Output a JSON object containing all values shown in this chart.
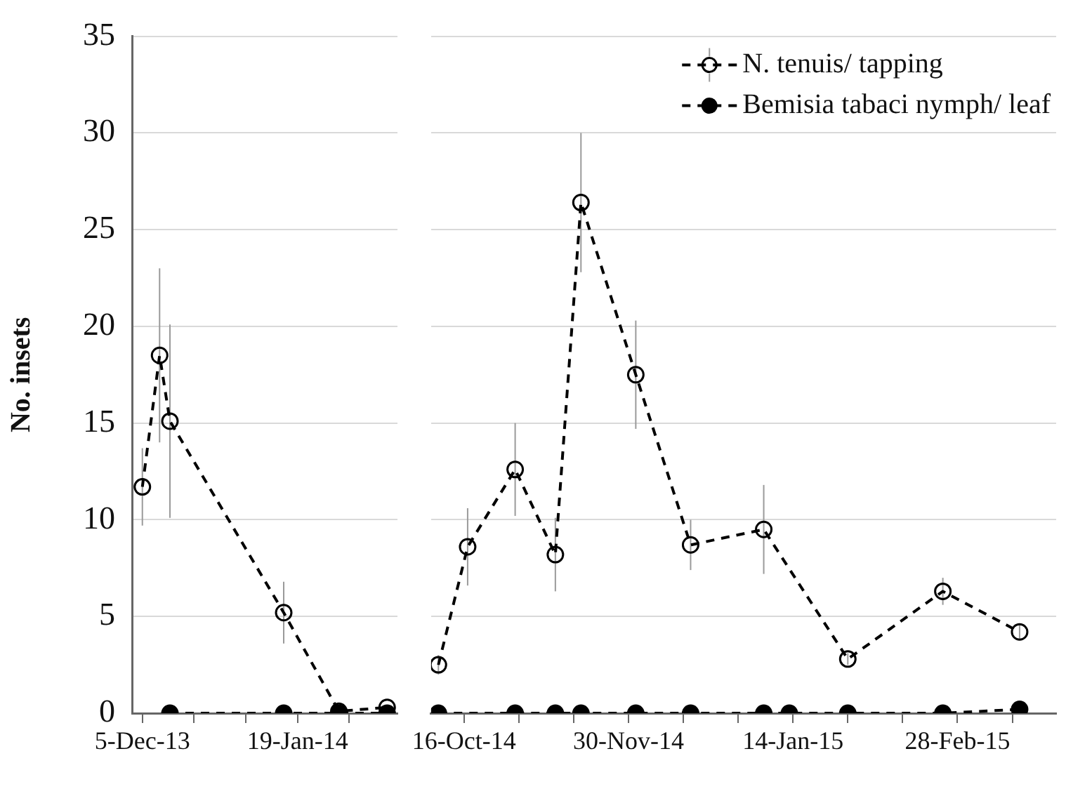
{
  "chart_data": [
    {
      "type": "line",
      "ylabel": "No. insets",
      "ylim": [
        0,
        35
      ],
      "yticks": [
        0,
        5,
        10,
        15,
        20,
        25,
        30,
        35
      ],
      "xlim": [
        "2013-12-02",
        "2014-02-17"
      ],
      "xticks": [
        {
          "value": "2013-12-05",
          "label": "5-Dec-13"
        },
        {
          "value": "2013-12-20",
          "label": null
        },
        {
          "value": "2014-01-04",
          "label": null
        },
        {
          "value": "2014-01-19",
          "label": "19-Jan-14"
        },
        {
          "value": "2014-02-03",
          "label": null
        }
      ],
      "grid": "y",
      "marker": "circle",
      "line_style": "dashed",
      "legend": false,
      "series": [
        {
          "color": "#000000",
          "x": [
            "2013-12-05",
            "2013-12-10",
            "2013-12-13",
            "2014-01-15",
            "2014-01-31",
            "2014-02-14"
          ],
          "values": [
            11.7,
            18.5,
            15.1,
            5.2,
            0.1,
            0.3
          ],
          "errors": [
            2,
            4.5,
            5,
            1.6,
            null,
            null
          ]
        },
        {
          "color": "#000000",
          "x": [
            "2013-12-13",
            "2014-01-15",
            "2014-01-31",
            "2014-02-14"
          ],
          "values": [
            0,
            0,
            0,
            0
          ]
        }
      ]
    },
    {
      "type": "line",
      "ylim": [
        0,
        35
      ],
      "yticks": [
        0,
        5,
        10,
        15,
        20,
        25,
        30,
        35
      ],
      "tick_labels": "x",
      "xlim": [
        "2014-10-07",
        "2015-03-27"
      ],
      "xticks": [
        {
          "value": "2014-10-16",
          "label": "16-Oct-14"
        },
        {
          "value": "2014-10-31",
          "label": null
        },
        {
          "value": "2014-11-15",
          "label": null
        },
        {
          "value": "2014-11-30",
          "label": "30-Nov-14"
        },
        {
          "value": "2014-12-15",
          "label": null
        },
        {
          "value": "2014-12-30",
          "label": null
        },
        {
          "value": "2015-01-14",
          "label": "14-Jan-15"
        },
        {
          "value": "2015-01-29",
          "label": null
        },
        {
          "value": "2015-02-13",
          "label": null
        },
        {
          "value": "2015-02-28",
          "label": "28-Feb-15"
        },
        {
          "value": "2015-03-15",
          "label": null
        }
      ],
      "grid": "y",
      "marker": "circle",
      "line_style": "dashed",
      "legend": "top right",
      "series": [
        {
          "name": "N. tenuis/ tapping",
          "color": "#000000",
          "x": [
            "2014-10-09",
            "2014-10-17",
            "2014-10-30",
            "2014-11-10",
            "2014-11-17",
            "2014-12-02",
            "2014-12-17",
            "2015-01-06",
            "2015-01-29",
            "2015-02-24",
            "2015-03-17"
          ],
          "values": [
            2.5,
            8.6,
            12.6,
            8.2,
            26.4,
            17.5,
            8.7,
            9.5,
            2.8,
            6.3,
            4.2
          ],
          "errors": [
            0.5,
            2,
            2.4,
            1.9,
            3.6,
            2.8,
            1.3,
            2.3,
            0.3,
            0.7,
            0.4
          ]
        },
        {
          "name": "Bemisia tabaci nymph/ leaf",
          "color": "#000000",
          "x": [
            "2014-10-09",
            "2014-10-30",
            "2014-11-10",
            "2014-11-17",
            "2014-12-02",
            "2014-12-17",
            "2015-01-06",
            "2015-01-13",
            "2015-01-29",
            "2015-02-24",
            "2015-03-17"
          ],
          "values": [
            0,
            0,
            0,
            0,
            0,
            0,
            0,
            0,
            0,
            0,
            0.2
          ]
        }
      ]
    }
  ]
}
